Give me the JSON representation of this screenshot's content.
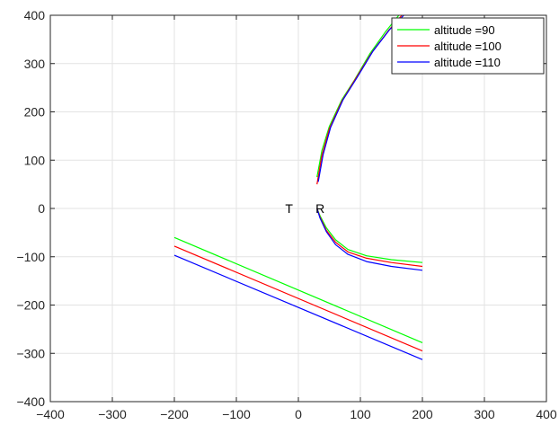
{
  "chart_data": {
    "type": "line",
    "title": "",
    "xlabel": "",
    "ylabel": "",
    "xlim": [
      -400,
      400
    ],
    "ylim": [
      -400,
      400
    ],
    "xticks": [
      -400,
      -300,
      -200,
      -100,
      0,
      100,
      200,
      300,
      400
    ],
    "yticks": [
      -400,
      -300,
      -200,
      -100,
      0,
      100,
      200,
      300,
      400
    ],
    "grid": true,
    "legend_position": "top-right",
    "annotations": [
      {
        "text": "T",
        "x": -15,
        "y": 0
      },
      {
        "text": "R",
        "x": 35,
        "y": 0
      }
    ],
    "series": [
      {
        "name": "altitude =90",
        "color": "#00ff00",
        "segments": [
          {
            "x": [
              -200,
              200
            ],
            "y": [
              -60,
              -278
            ]
          },
          {
            "x": [
              30,
              38,
              50,
              70,
              90,
              115,
              140,
              162
            ],
            "y": [
              65,
              120,
              170,
              225,
              265,
              320,
              365,
              400
            ]
          },
          {
            "x": [
              30,
              35,
              45,
              60,
              80,
              110,
              150,
              200
            ],
            "y": [
              0,
              -15,
              -40,
              -65,
              -85,
              -98,
              -106,
              -112
            ]
          }
        ]
      },
      {
        "name": "altitude =100",
        "color": "#ff0000",
        "segments": [
          {
            "x": [
              -200,
              200
            ],
            "y": [
              -78,
              -295
            ]
          },
          {
            "x": [
              30,
              38,
              50,
              70,
              92,
              118,
              145,
              167
            ],
            "y": [
              50,
              110,
              165,
              222,
              268,
              322,
              368,
              400
            ]
          },
          {
            "x": [
              30,
              35,
              45,
              60,
              80,
              110,
              150,
              200
            ],
            "y": [
              0,
              -18,
              -45,
              -70,
              -90,
              -103,
              -112,
              -120
            ]
          }
        ]
      },
      {
        "name": "altitude =110",
        "color": "#0000ff",
        "segments": [
          {
            "x": [
              -200,
              200
            ],
            "y": [
              -97,
              -313
            ]
          },
          {
            "x": [
              32,
              40,
              52,
              72,
              94,
              120,
              147,
              170
            ],
            "y": [
              55,
              112,
              168,
              225,
              270,
              325,
              370,
              400
            ]
          },
          {
            "x": [
              30,
              35,
              45,
              60,
              80,
              110,
              150,
              200
            ],
            "y": [
              0,
              -20,
              -48,
              -75,
              -95,
              -110,
              -120,
              -128
            ]
          }
        ]
      }
    ]
  }
}
